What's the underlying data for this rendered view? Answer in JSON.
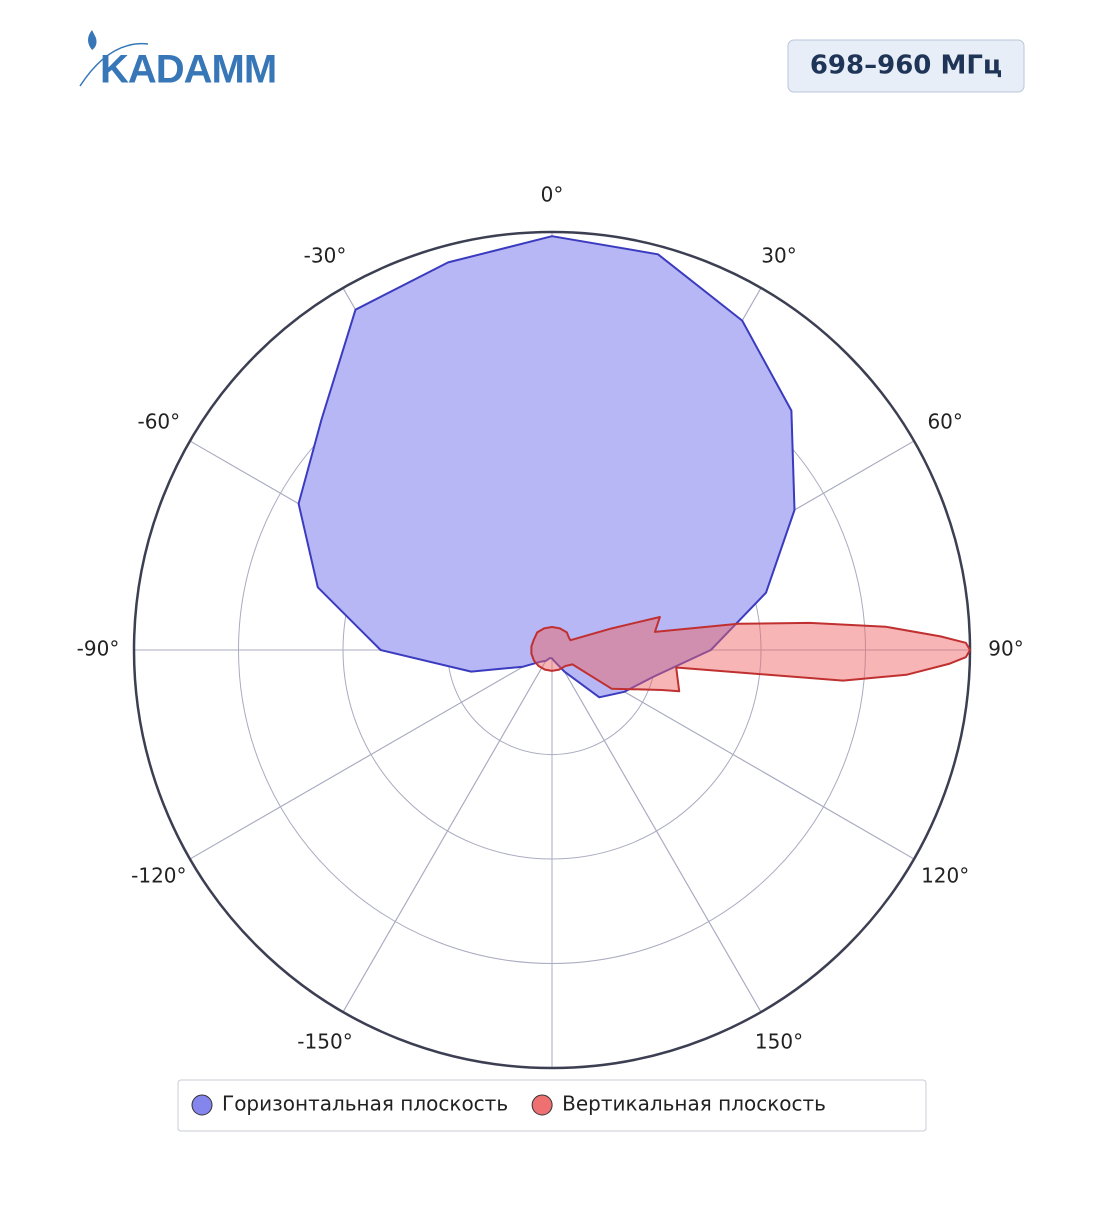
{
  "logo": "KADAMM",
  "badge": "698–960 МГц",
  "chart_data": {
    "type": "polar",
    "rlim": [
      0,
      1
    ],
    "rgrid": [
      0.25,
      0.5,
      0.75
    ],
    "thetaticks": [
      {
        "value": 0,
        "label": "0°"
      },
      {
        "value": 30,
        "label": "30°"
      },
      {
        "value": 60,
        "label": "60°"
      },
      {
        "value": 90,
        "label": "90°"
      },
      {
        "value": 120,
        "label": "120°"
      },
      {
        "value": 150,
        "label": "150°"
      },
      {
        "value": -150,
        "label": "-150°"
      },
      {
        "value": -120,
        "label": "-120°"
      },
      {
        "value": -90,
        "label": "-90°"
      },
      {
        "value": -60,
        "label": "-60°"
      },
      {
        "value": -30,
        "label": "-30°"
      }
    ],
    "series": [
      {
        "name": "Горизонтальная плоскость",
        "color": "#3b3bbf",
        "fill": "#b7b7f5",
        "marker": "#8585ee",
        "theta": [
          0,
          15,
          30,
          45,
          60,
          75,
          90,
          105,
          120,
          135,
          150,
          165,
          180,
          -165,
          -150,
          -135,
          -120,
          -105,
          -90,
          -75,
          -60,
          -45,
          -30,
          -15
        ],
        "r": [
          0.99,
          0.98,
          0.91,
          0.81,
          0.67,
          0.53,
          0.38,
          0.25,
          0.2,
          0.16,
          0.06,
          0.03,
          0.02,
          0.02,
          0.03,
          0.04,
          0.08,
          0.2,
          0.41,
          0.58,
          0.7,
          0.78,
          0.94,
          0.96
        ]
      },
      {
        "name": "Вертикальная плоскость",
        "color": "#c03030",
        "fill": "rgba(238,100,100,0.48)",
        "marker": "#ee7070",
        "theta": [
          0,
          20,
          40,
          55,
          62,
          70,
          73,
          80,
          82,
          84,
          86,
          88,
          89,
          90,
          91,
          92,
          94,
          96,
          98,
          108,
          110,
          123,
          125,
          140,
          160,
          180,
          -160,
          -140,
          -120,
          -100,
          -80,
          -60,
          -40,
          -20
        ],
        "r": [
          0.055,
          0.055,
          0.055,
          0.05,
          0.05,
          0.15,
          0.27,
          0.25,
          0.45,
          0.62,
          0.8,
          0.93,
          0.99,
          1.0,
          0.99,
          0.95,
          0.85,
          0.7,
          0.3,
          0.32,
          0.28,
          0.17,
          0.06,
          0.05,
          0.05,
          0.05,
          0.05,
          0.05,
          0.05,
          0.05,
          0.05,
          0.05,
          0.055,
          0.055
        ]
      }
    ]
  }
}
